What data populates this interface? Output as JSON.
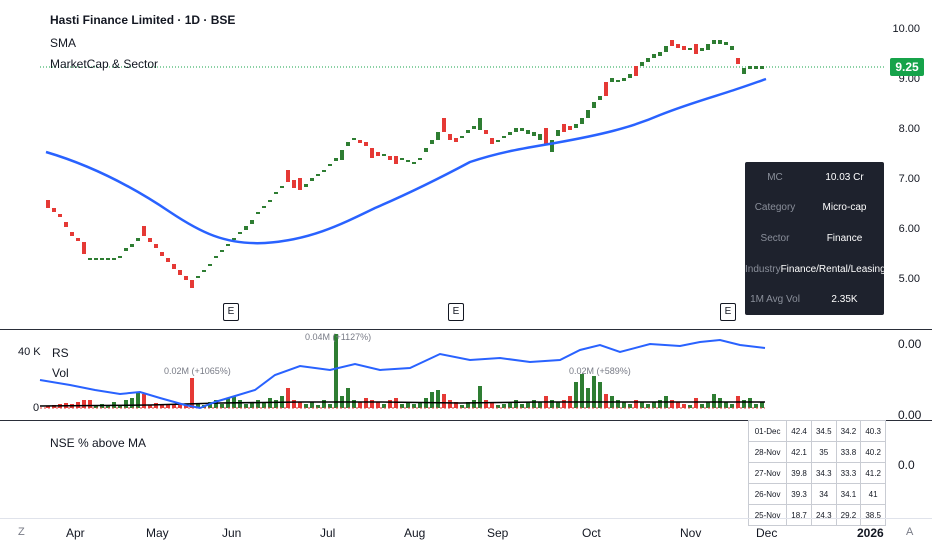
{
  "legend": {
    "title": "Hasti Finance Limited · 1D · BSE",
    "line2": "SMA",
    "line3": "MarketCap & Sector"
  },
  "price_axis": {
    "ticks": [
      "10.00",
      "9.00",
      "8.00",
      "7.00",
      "6.00",
      "5.00"
    ],
    "current_price": "9.25"
  },
  "earnings_badge": "E",
  "info_table": {
    "rows": [
      {
        "key": "MC",
        "value": "10.03 Cr"
      },
      {
        "key": "Category",
        "value": "Micro-cap"
      },
      {
        "key": "Sector",
        "value": "Finance"
      },
      {
        "key": "Industry",
        "value": "Finance/Rental/Leasing"
      },
      {
        "key": "1M Avg Vol",
        "value": "2.35K"
      }
    ]
  },
  "volume_pane": {
    "label_rs": "RS",
    "label_vol": "Vol",
    "y_top": "40 K",
    "y_zero": "0",
    "right_top": "0.00",
    "right_bottom": "0.00",
    "annotations": [
      "0.02M (+1065%)",
      "0.04M (+1127%)",
      "0.02M (+589%)"
    ]
  },
  "breadth_pane": {
    "label": "NSE % above MA",
    "right_value": "0.0",
    "rows": [
      [
        "01-Dec",
        "42.4",
        "34.5",
        "34.2",
        "40.3"
      ],
      [
        "28-Nov",
        "42.1",
        "35",
        "33.8",
        "40.2"
      ],
      [
        "27-Nov",
        "39.8",
        "34.3",
        "33.3",
        "41.2"
      ],
      [
        "26-Nov",
        "39.3",
        "34",
        "34.1",
        "41"
      ],
      [
        "25-Nov",
        "18.7",
        "24.3",
        "29.2",
        "38.5"
      ]
    ]
  },
  "time_axis": {
    "labels": [
      "Apr",
      "May",
      "Jun",
      "Jul",
      "Aug",
      "Sep",
      "Oct",
      "Nov",
      "Dec",
      "2026"
    ],
    "left_corner": "Z",
    "right_corner": "A"
  },
  "colors": {
    "up": "#2e7d32",
    "down": "#e53935",
    "sma": "#2962ff",
    "current_price_bg": "#16a34a",
    "table_bg": "#1e222d"
  }
}
